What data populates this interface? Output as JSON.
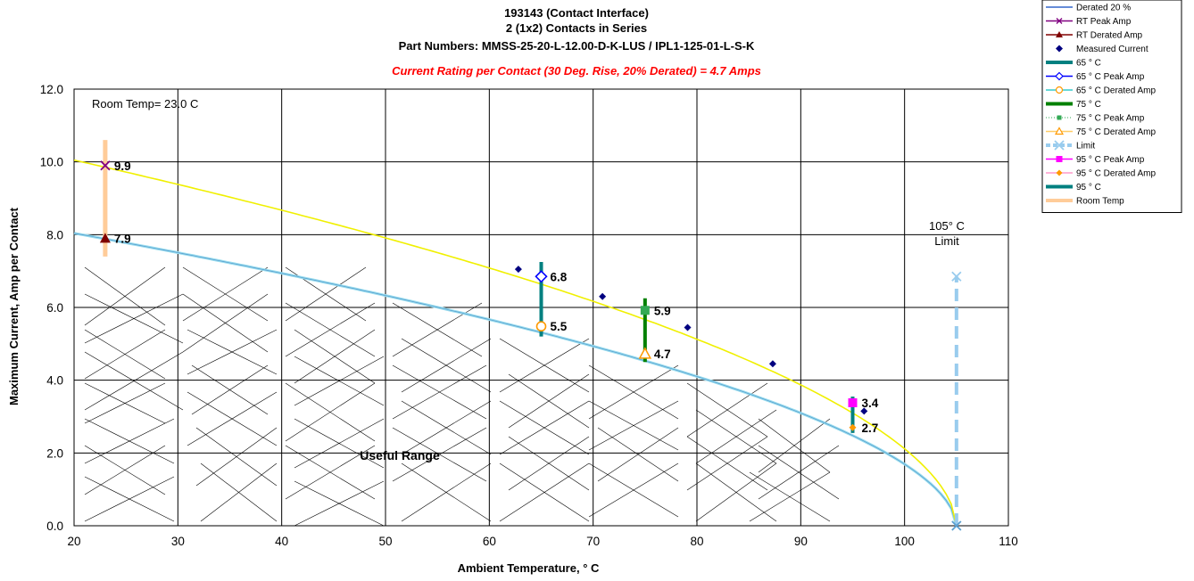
{
  "chart_data": {
    "type": "line",
    "title_lines": [
      "193143 (Contact Interface)",
      "2 (1x2) Contacts in Series",
      "Part Numbers: MMSS-25-20-L-12.00-D-K-LUS / IPL1-125-01-L-S-K"
    ],
    "subtitle": "Current Rating per Contact (30 Deg. Rise, 20% Derated)  = 4.7 Amps",
    "xlabel": "Ambient Temperature,  ° C",
    "ylabel": "Maximum Current, Amp per Contact",
    "xlim": [
      20,
      110
    ],
    "ylim": [
      0,
      12
    ],
    "x_ticks": [
      "20",
      "30",
      "40",
      "50",
      "60",
      "70",
      "80",
      "90",
      "100",
      "110"
    ],
    "y_ticks": [
      "0.0",
      "2.0",
      "4.0",
      "6.0",
      "8.0",
      "10.0",
      "12.0"
    ],
    "grid": true,
    "legend_position": "top-right",
    "annotations": {
      "room_temp": "Room Temp= 23.0 C",
      "limit_line1": "105° C",
      "limit_line2": "Limit",
      "useful_range": "Useful Range"
    },
    "curve_peak": {
      "max_temp": 105,
      "t0": 20,
      "i0": 10.05,
      "exponent": 0.55
    },
    "curve_derated": {
      "max_temp": 105,
      "t0": 20,
      "i0": 8.04,
      "exponent": 0.55
    },
    "series": [
      {
        "name": "Derated 20 %",
        "kind": "line",
        "color": "#99ddee",
        "x": [
          20,
          30,
          40,
          50,
          60,
          70,
          80,
          90,
          95,
          100,
          105
        ],
        "y": [
          8.04,
          7.48,
          6.95,
          6.38,
          5.75,
          5.1,
          4.35,
          3.35,
          2.72,
          1.9,
          0
        ]
      },
      {
        "name": "RT Peak Amp",
        "kind": "point",
        "marker": "x",
        "color": "#800080",
        "x": [
          23
        ],
        "y": [
          9.9
        ],
        "label": "9.9"
      },
      {
        "name": "RT Derated Amp",
        "kind": "point",
        "marker": "triangle",
        "color": "#800000",
        "x": [
          23
        ],
        "y": [
          7.9
        ],
        "label": "7.9"
      },
      {
        "name": "Measured Current",
        "kind": "scatter",
        "marker": "diamond",
        "color": "#000080",
        "x": [
          62.8,
          70.9,
          79.1,
          87.3,
          96.1
        ],
        "y": [
          7.05,
          6.3,
          5.45,
          4.45,
          3.15
        ]
      },
      {
        "name": "65  ° C",
        "kind": "vline",
        "color": "#008080",
        "x": [
          65,
          65
        ],
        "y": [
          5.2,
          7.25
        ]
      },
      {
        "name": "65  ° C Peak Amp",
        "kind": "point",
        "marker": "diamond-open",
        "color": "#0000ff",
        "x": [
          65
        ],
        "y": [
          6.85
        ],
        "label": "6.8"
      },
      {
        "name": "65  ° C Derated Amp",
        "kind": "point",
        "marker": "circle-open",
        "color": "#ff9900",
        "x": [
          65
        ],
        "y": [
          5.48
        ],
        "label": "5.5"
      },
      {
        "name": "75  ° C",
        "kind": "vline",
        "color": "#008000",
        "x": [
          75,
          75
        ],
        "y": [
          4.5,
          6.25
        ]
      },
      {
        "name": "75  ° C Peak Amp",
        "kind": "point",
        "marker": "square",
        "color": "#33aa55",
        "x": [
          75
        ],
        "y": [
          5.92
        ],
        "label": "5.9"
      },
      {
        "name": "75  ° C Derated Amp",
        "kind": "point",
        "marker": "triangle-open",
        "color": "#ff9900",
        "x": [
          75
        ],
        "y": [
          4.73
        ],
        "label": "4.7"
      },
      {
        "name": "Limit",
        "kind": "dashed-vline",
        "color": "#99ccee",
        "x": [
          105,
          105
        ],
        "y": [
          0,
          6.85
        ]
      },
      {
        "name": "95  ° C Peak Amp",
        "kind": "point",
        "marker": "square",
        "color": "#ff00ff",
        "x": [
          95
        ],
        "y": [
          3.38
        ],
        "label": "3.4"
      },
      {
        "name": "95  ° C Derated Amp",
        "kind": "point",
        "marker": "diamond",
        "color": "#ff9900",
        "x": [
          95
        ],
        "y": [
          2.7
        ],
        "label": "2.7"
      },
      {
        "name": "95  ° C",
        "kind": "vline",
        "color": "#008080",
        "x": [
          95,
          95
        ],
        "y": [
          2.55,
          3.55
        ]
      },
      {
        "name": "Room Temp",
        "kind": "vline",
        "color": "#ffcc99",
        "x": [
          23,
          23
        ],
        "y": [
          7.4,
          10.6
        ]
      }
    ],
    "legend": [
      {
        "label": "Derated 20 %",
        "color": "#3366cc",
        "style": "line"
      },
      {
        "label": "RT Peak Amp",
        "color": "#800080",
        "style": "line-x"
      },
      {
        "label": "RT Derated Amp",
        "color": "#800000",
        "style": "line-tri"
      },
      {
        "label": "Measured Current",
        "color": "#000080",
        "style": "diamond"
      },
      {
        "label": "65  ° C",
        "color": "#008080",
        "style": "thick"
      },
      {
        "label": "65  ° C Peak Amp",
        "color": "#0000ff",
        "style": "line-diamond-open"
      },
      {
        "label": "65  ° C Derated Amp",
        "color": "#33cccc",
        "style": "line-circle-open"
      },
      {
        "label": "75  ° C",
        "color": "#008000",
        "style": "thick"
      },
      {
        "label": "75  ° C Peak Amp",
        "color": "#33aa55",
        "style": "square-dotted"
      },
      {
        "label": "75  ° C Derated Amp",
        "color": "#ffcc66",
        "style": "line-tri-open"
      },
      {
        "label": "Limit",
        "color": "#99ccee",
        "style": "dashed-x"
      },
      {
        "label": "95  ° C Peak Amp",
        "color": "#ff00ff",
        "style": "line-square"
      },
      {
        "label": "95  ° C Derated Amp",
        "color": "#ff99cc",
        "style": "line-diamond"
      },
      {
        "label": "95  ° C",
        "color": "#008080",
        "style": "thick"
      },
      {
        "label": "Room Temp",
        "color": "#ffcc99",
        "style": "thick"
      }
    ]
  }
}
